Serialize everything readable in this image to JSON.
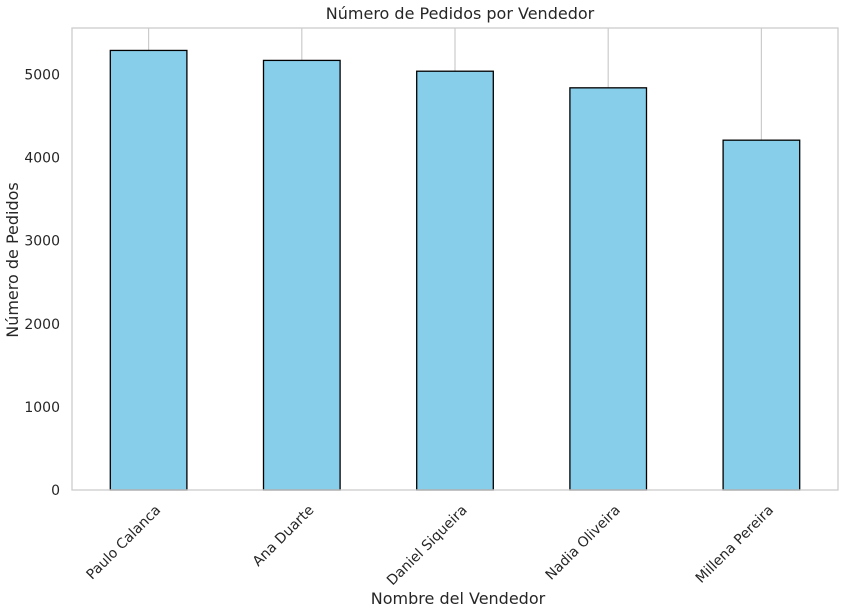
{
  "chart_data": {
    "type": "bar",
    "title": "Número de Pedidos por Vendedor",
    "xlabel": "Nombre del Vendedor",
    "ylabel": "Número de Pedidos",
    "categories": [
      "Paulo Calanca",
      "Ana Duarte",
      "Daniel Siqueira",
      "Nadia Oliveira",
      "Millena Pereira"
    ],
    "values": [
      5290,
      5170,
      5040,
      4840,
      4210
    ],
    "ylim": [
      0,
      5560
    ],
    "yticks": [
      0,
      1000,
      2000,
      3000,
      4000,
      5000
    ],
    "grid": "x-only",
    "bar_color": "#87ceeb",
    "bar_edge_color": "#000000",
    "grid_color": "#cccccc",
    "axes_edge_color": "#cccccc",
    "text_color": "#262626"
  }
}
